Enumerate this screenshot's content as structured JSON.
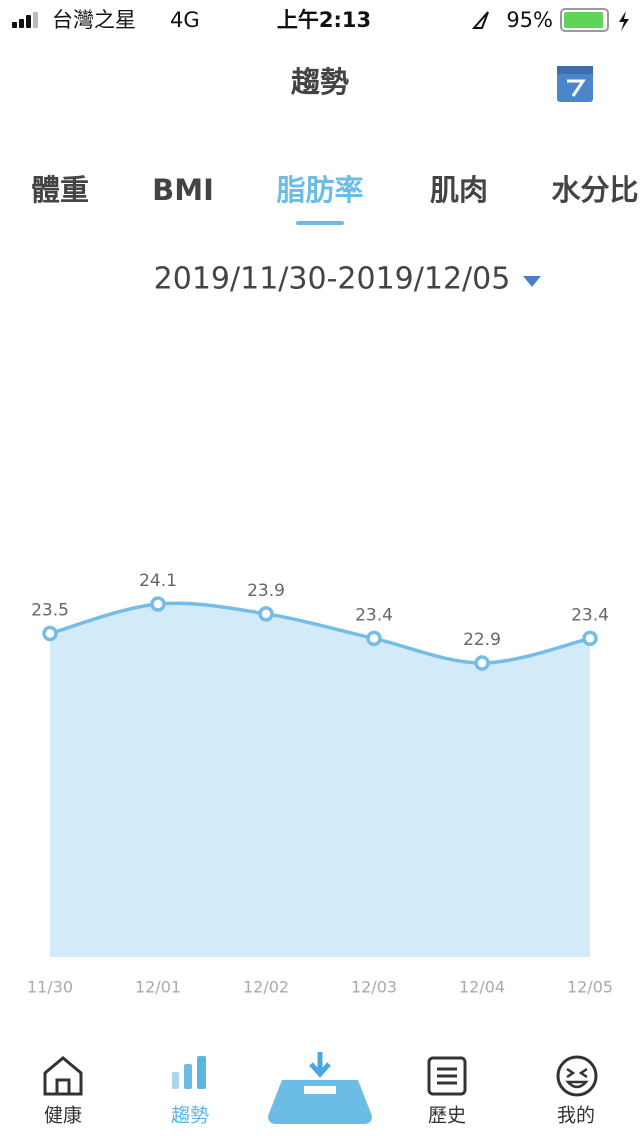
{
  "status_bar": {
    "carrier": "台灣之星",
    "network": "4G",
    "time": "上午2:13",
    "battery": "95%"
  },
  "header": {
    "title": "趨勢"
  },
  "tabs": [
    "體重",
    "BMI",
    "脂肪率",
    "肌肉",
    "水分比"
  ],
  "date_range": "2019/11/30-2019/12/05",
  "chart_data": {
    "type": "area",
    "categories": [
      "11/30",
      "12/01",
      "12/02",
      "12/03",
      "12/04",
      "12/05"
    ],
    "values": [
      23.5,
      24.1,
      23.9,
      23.4,
      22.9,
      23.4
    ],
    "color": "#74bde6",
    "fill": "#d3ebf8"
  },
  "nav": [
    "健康",
    "趨勢",
    "歷史",
    "我的"
  ]
}
